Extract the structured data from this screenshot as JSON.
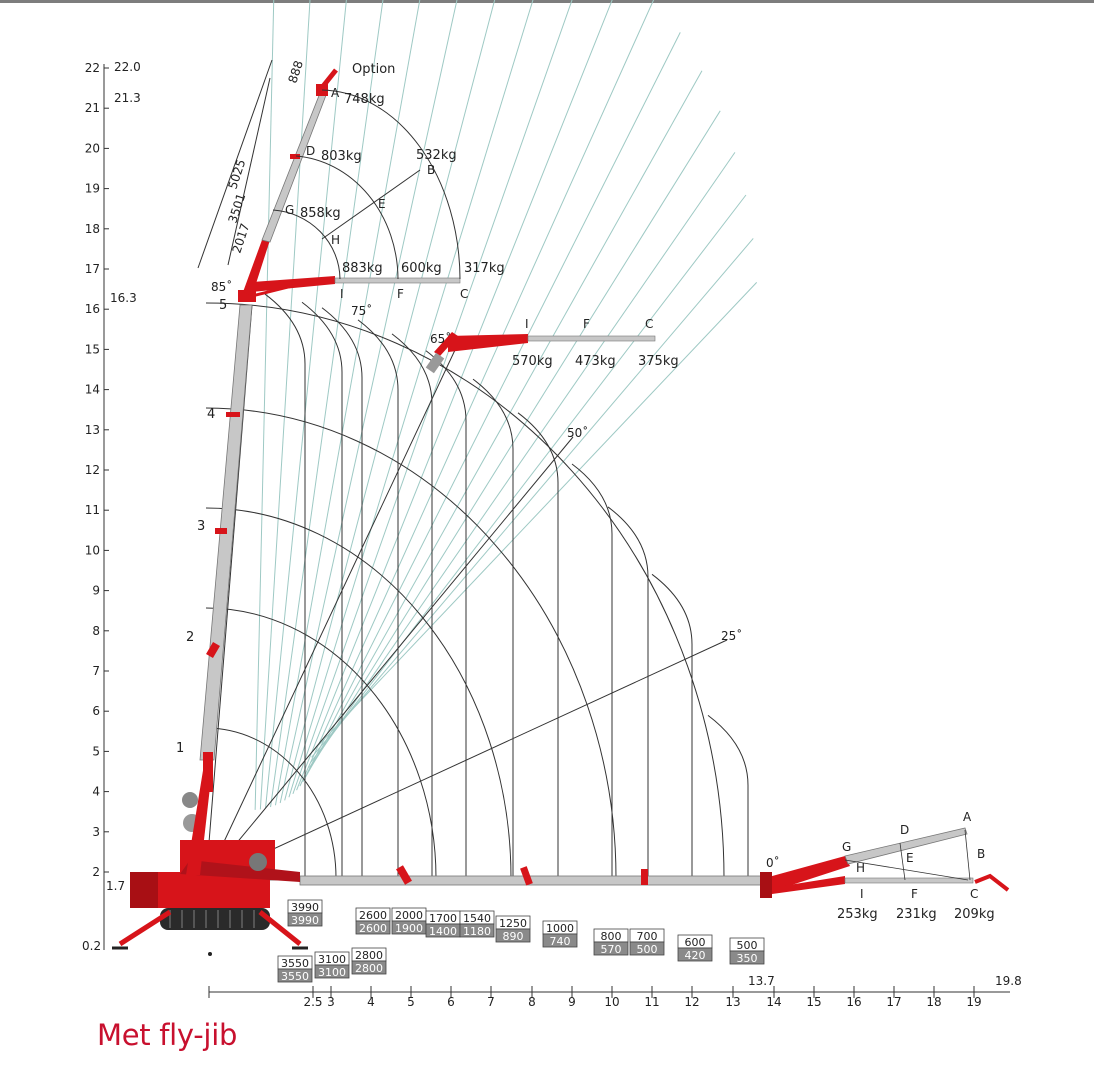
{
  "caption": "Met fly-jib",
  "colors": {
    "crane_red": "#d7141a",
    "grid_line": "#333333",
    "fine_line": "#9ec9c4",
    "caption_red": "#c8102e"
  },
  "y_axis": {
    "ticks": [
      "22",
      "21",
      "20",
      "19",
      "18",
      "17",
      "16",
      "15",
      "14",
      "13",
      "12",
      "11",
      "10",
      "9",
      "8",
      "7",
      "6",
      "5",
      "4",
      "3",
      "2"
    ],
    "markers": [
      "22.0",
      "21.3",
      "16.3",
      "1.7",
      "0.2"
    ]
  },
  "x_axis": {
    "ticks": [
      "2.5",
      "3",
      "4",
      "5",
      "6",
      "7",
      "8",
      "9",
      "10",
      "11",
      "12",
      "13",
      "14",
      "15",
      "16",
      "17",
      "18",
      "19"
    ],
    "markers": [
      "13.7",
      "19.8"
    ]
  },
  "boom_sections": [
    "1",
    "2",
    "3",
    "4",
    "5"
  ],
  "angles": [
    "75˚",
    "65˚",
    "50˚",
    "25˚",
    "0˚"
  ],
  "top_jib": {
    "dims": [
      "888",
      "5025",
      "3501",
      "2017"
    ],
    "option": "Option",
    "base_angle": "85˚",
    "letters": [
      "A",
      "D",
      "G",
      "H",
      "E",
      "B",
      "I",
      "F",
      "C"
    ],
    "loads": [
      "748kg",
      "803kg",
      "858kg",
      "532kg",
      "883kg",
      "600kg",
      "317kg"
    ]
  },
  "mid_jib": {
    "letters": [
      "I",
      "F",
      "C"
    ],
    "loads": [
      "570kg",
      "473kg",
      "375kg"
    ]
  },
  "low_jib": {
    "letters": [
      "A",
      "D",
      "G",
      "H",
      "E",
      "B",
      "I",
      "F",
      "C"
    ],
    "loads": [
      "253kg",
      "231kg",
      "209kg"
    ]
  },
  "load_boxes": [
    {
      "top": "3990",
      "bottom": "3990"
    },
    {
      "top": "3550",
      "bottom": "3550"
    },
    {
      "top": "3100",
      "bottom": "3100"
    },
    {
      "top": "2800",
      "bottom": "2800"
    },
    {
      "top": "2600",
      "bottom": "2600"
    },
    {
      "top": "2000",
      "bottom": "1900"
    },
    {
      "top": "1700",
      "bottom": "1400"
    },
    {
      "top": "1540",
      "bottom": "1180"
    },
    {
      "top": "1250",
      "bottom": "890"
    },
    {
      "top": "1000",
      "bottom": "740"
    },
    {
      "top": "800",
      "bottom": "570"
    },
    {
      "top": "700",
      "bottom": "500"
    },
    {
      "top": "600",
      "bottom": "420"
    },
    {
      "top": "500",
      "bottom": "350"
    }
  ]
}
